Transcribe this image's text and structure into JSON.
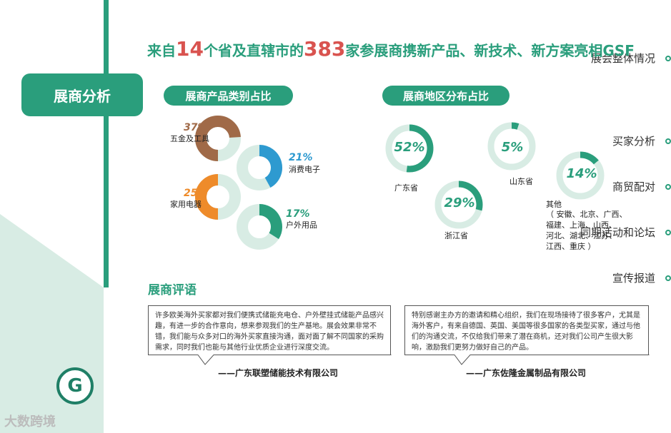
{
  "nav": {
    "items": [
      "展会整体情况",
      "展商分析",
      "买家分析",
      "商贸配对",
      "同期活动和论坛",
      "宣传报道"
    ],
    "active": "展商分析"
  },
  "headline": {
    "part1": "来自",
    "num1": "14",
    "part2": "个省及直辖市的",
    "num2": "383",
    "part3": "家参展商携新产品、新技术、新方案亮相GSF"
  },
  "product_section": {
    "title": "展商产品类别占比",
    "items": [
      {
        "pct": "37%",
        "label": "五金及工具",
        "value": 37,
        "color": "#a06a48"
      },
      {
        "pct": "21%",
        "label": "消费电子",
        "value": 21,
        "color": "#2e9ad0"
      },
      {
        "pct": "25%",
        "label": "家用电器",
        "value": 25,
        "color": "#ee8b2a"
      },
      {
        "pct": "17%",
        "label": "户外用品",
        "value": 17,
        "color": "#2a9e7c"
      }
    ]
  },
  "region_section": {
    "title": "展商地区分布占比",
    "items": [
      {
        "pct": "52%",
        "value": 52,
        "label": "广东省"
      },
      {
        "pct": "29%",
        "value": 29,
        "label": "浙江省"
      },
      {
        "pct": "5%",
        "value": 5,
        "label": "山东省"
      },
      {
        "pct": "14%",
        "value": 14,
        "label": "其他",
        "detail": [
          "（ 安徽、北京、广西、",
          "福建、上海、山西、",
          "河北、湖北、江苏、",
          "江西、重庆 ）"
        ]
      }
    ]
  },
  "reviews": {
    "title": "展商评语",
    "items": [
      {
        "text": "许多欧美海外买家都对我们便携式储能充电仓、户外壁挂式储能产品感兴趣，有进一步的合作意向，想来参观我们的生产基地。展会效果非常不错，我们能与众多对口的海外买家直接沟通，面对面了解不同国家的采购需求，同时我们也能与其他行业优质企业进行深度交流。",
        "company": "——广东联塑储能技术有限公司"
      },
      {
        "text": "特别感谢主办方的邀请和精心组织，我们在现场接待了很多客户，尤其是海外客户，有来自德国、英国、美国等很多国家的各类型买家，通过与他们的沟通交流，不仅给我们带来了潜在商机，还对我们公司产生很大影响，激励我们更努力做好自己的产品。",
        "company": "——广东佐隆金属制品有限公司"
      }
    ]
  },
  "logo_letter": "G",
  "watermark": "大数跨境",
  "colors": {
    "accent": "#2a9e7c",
    "highlight": "#d9534f",
    "ring_bg": "#d8ece4"
  }
}
